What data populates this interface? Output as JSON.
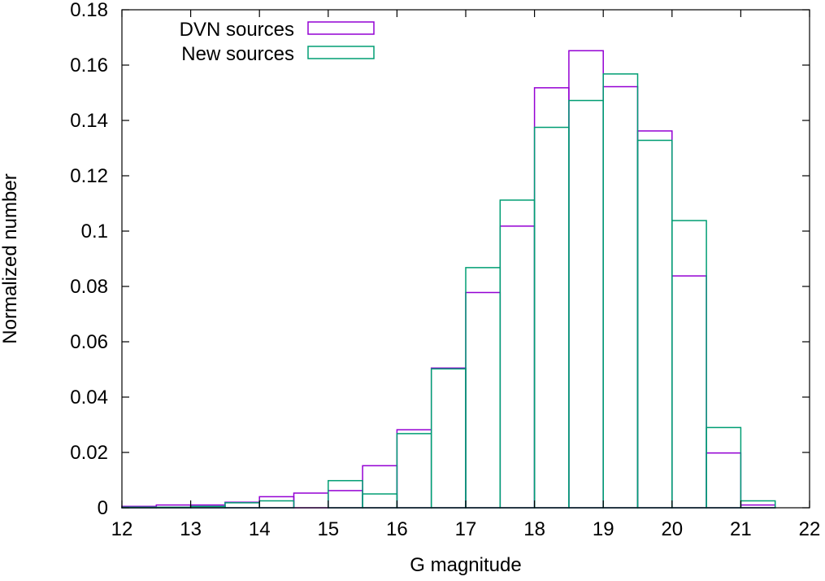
{
  "chart_data": {
    "type": "bar",
    "subtype": "step-histogram",
    "xlabel": "G magnitude",
    "ylabel": "Normalized number",
    "xlim": [
      12,
      22
    ],
    "ylim": [
      0,
      0.18
    ],
    "x_ticks": [
      "12",
      "13",
      "14",
      "15",
      "16",
      "17",
      "18",
      "19",
      "20",
      "21",
      "22"
    ],
    "y_ticks": [
      "0",
      "0.02",
      "0.04",
      "0.06",
      "0.08",
      "0.1",
      "0.12",
      "0.14",
      "0.16",
      "0.18"
    ],
    "bin_width": 0.5,
    "bin_starts": [
      12.0,
      12.5,
      13.0,
      13.5,
      14.0,
      14.5,
      15.0,
      15.5,
      16.0,
      16.5,
      17.0,
      17.5,
      18.0,
      18.5,
      19.0,
      19.5,
      20.0,
      20.5,
      21.0
    ],
    "series": [
      {
        "name": "DVN sources",
        "color": "#9400d3",
        "values": [
          0.0005,
          0.001,
          0.001,
          0.002,
          0.004,
          0.0053,
          0.0062,
          0.0152,
          0.0282,
          0.0505,
          0.0778,
          0.1018,
          0.1518,
          0.1652,
          0.1522,
          0.1362,
          0.0838,
          0.0198,
          0.001
        ]
      },
      {
        "name": "New sources",
        "color": "#009e73",
        "values": [
          0.0002,
          0.0002,
          0.0005,
          0.0018,
          0.0025,
          0.0,
          0.0098,
          0.005,
          0.0268,
          0.0502,
          0.0868,
          0.1112,
          0.1375,
          0.1472,
          0.1568,
          0.1328,
          0.1038,
          0.029,
          0.0025
        ]
      }
    ],
    "grid": false,
    "legend_position": "top-left"
  }
}
